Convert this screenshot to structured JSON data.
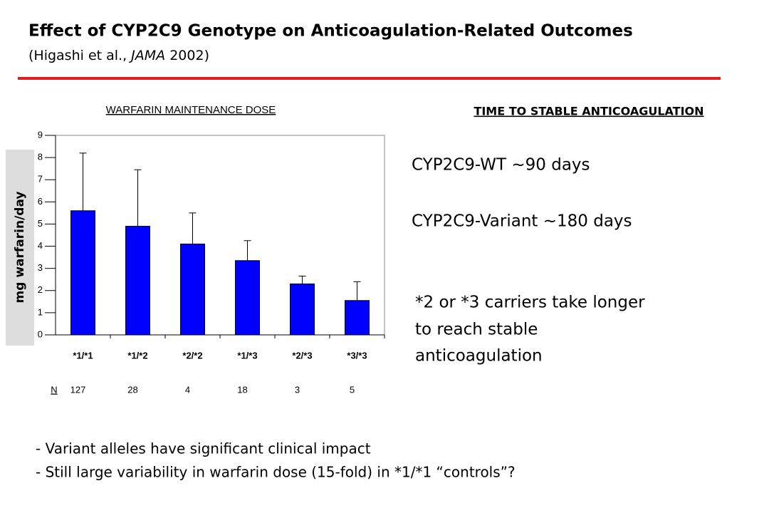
{
  "header": {
    "title": "Effect of CYP2C9 Genotype on Anticoagulation-Related Outcomes",
    "citation_prefix": "(Higashi et al., ",
    "citation_journal": "JAMA",
    "citation_suffix": " 2002)"
  },
  "chart_data": {
    "type": "bar",
    "title": "WARFARIN MAINTENANCE DOSE",
    "y_label": "mg warfarin/day",
    "categories": [
      "*1/*1",
      "*1/*2",
      "*2/*2",
      "*1/*3",
      "*2/*3",
      "*3/*3"
    ],
    "values": [
      5.6,
      4.9,
      4.1,
      3.35,
      2.3,
      1.55
    ],
    "errors": [
      2.6,
      2.55,
      1.4,
      0.9,
      0.35,
      0.85
    ],
    "color": "#0000ff",
    "ylim": [
      0,
      9
    ],
    "yticks": [
      0,
      1,
      2,
      3,
      4,
      5,
      6,
      7,
      8,
      9
    ],
    "n_label": "N",
    "n_values": [
      127,
      28,
      4,
      18,
      3,
      5
    ]
  },
  "right_panel": {
    "heading": "TIME TO STABLE ANTICOAGULATION",
    "lines": [
      "CYP2C9-WT ~90 days",
      "CYP2C9-Variant ~180 days"
    ],
    "note": [
      "*2 or *3 carriers take longer",
      "to reach stable",
      "anticoagulation"
    ]
  },
  "bullets": [
    "- Variant alleles have significant clinical impact",
    "- Still large variability in warfarin dose (15-fold) in *1/*1 “controls”?"
  ]
}
